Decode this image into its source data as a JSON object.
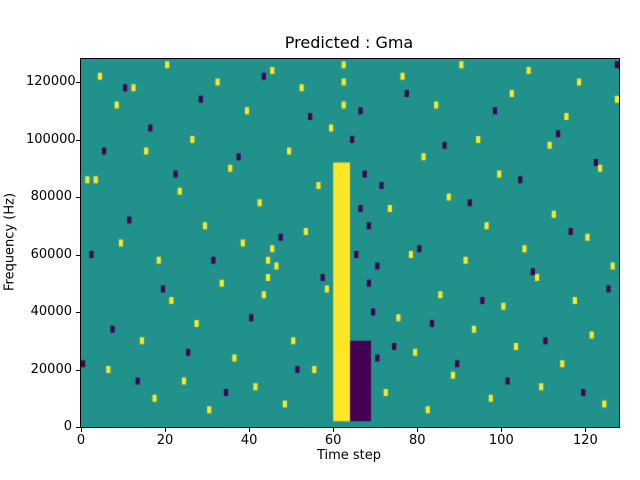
{
  "chart_data": {
    "type": "heatmap",
    "title": "Predicted : Gma",
    "xlabel": "Time step",
    "ylabel": "Frequency (Hz)",
    "x_max": 128,
    "y_max": 128000,
    "x_ticks": [
      0,
      20,
      40,
      60,
      80,
      100,
      120
    ],
    "y_ticks": [
      0,
      20000,
      40000,
      60000,
      80000,
      100000,
      120000
    ],
    "grid": false,
    "legend": "none",
    "colors": {
      "background": "#21918c",
      "yellow": "#fde725",
      "purple": "#440154"
    },
    "bands": [
      {
        "x0": 60,
        "x1": 63,
        "y0": 2000,
        "y1": 92000,
        "color": "yellow"
      },
      {
        "x0": 64,
        "x1": 68,
        "y0": 2000,
        "y1": 30000,
        "color": "purple"
      }
    ],
    "yellow_points": [
      [
        1,
        86000
      ],
      [
        3,
        86000
      ],
      [
        4,
        122000
      ],
      [
        6,
        20000
      ],
      [
        8,
        112000
      ],
      [
        9,
        64000
      ],
      [
        12,
        118000
      ],
      [
        14,
        30000
      ],
      [
        15,
        96000
      ],
      [
        17,
        10000
      ],
      [
        18,
        58000
      ],
      [
        20,
        126000
      ],
      [
        21,
        44000
      ],
      [
        23,
        82000
      ],
      [
        24,
        16000
      ],
      [
        26,
        100000
      ],
      [
        27,
        36000
      ],
      [
        29,
        70000
      ],
      [
        30,
        6000
      ],
      [
        32,
        120000
      ],
      [
        33,
        50000
      ],
      [
        35,
        90000
      ],
      [
        36,
        24000
      ],
      [
        38,
        64000
      ],
      [
        39,
        110000
      ],
      [
        41,
        14000
      ],
      [
        42,
        78000
      ],
      [
        43,
        46000
      ],
      [
        44,
        52000
      ],
      [
        44,
        58000
      ],
      [
        45,
        62000
      ],
      [
        45,
        124000
      ],
      [
        46,
        56000
      ],
      [
        48,
        8000
      ],
      [
        49,
        96000
      ],
      [
        50,
        30000
      ],
      [
        52,
        118000
      ],
      [
        53,
        68000
      ],
      [
        55,
        20000
      ],
      [
        56,
        84000
      ],
      [
        58,
        48000
      ],
      [
        59,
        104000
      ],
      [
        62,
        112000
      ],
      [
        62,
        120000
      ],
      [
        62,
        126000
      ],
      [
        72,
        12000
      ],
      [
        73,
        76000
      ],
      [
        75,
        38000
      ],
      [
        76,
        122000
      ],
      [
        78,
        60000
      ],
      [
        79,
        26000
      ],
      [
        81,
        94000
      ],
      [
        82,
        6000
      ],
      [
        84,
        112000
      ],
      [
        85,
        46000
      ],
      [
        87,
        80000
      ],
      [
        88,
        18000
      ],
      [
        90,
        126000
      ],
      [
        91,
        58000
      ],
      [
        93,
        34000
      ],
      [
        94,
        100000
      ],
      [
        96,
        70000
      ],
      [
        97,
        10000
      ],
      [
        99,
        88000
      ],
      [
        100,
        42000
      ],
      [
        102,
        116000
      ],
      [
        103,
        28000
      ],
      [
        105,
        62000
      ],
      [
        106,
        124000
      ],
      [
        108,
        52000
      ],
      [
        109,
        14000
      ],
      [
        111,
        98000
      ],
      [
        112,
        74000
      ],
      [
        114,
        22000
      ],
      [
        115,
        108000
      ],
      [
        117,
        44000
      ],
      [
        118,
        120000
      ],
      [
        120,
        66000
      ],
      [
        121,
        32000
      ],
      [
        123,
        90000
      ],
      [
        124,
        8000
      ],
      [
        126,
        56000
      ],
      [
        127,
        114000
      ]
    ],
    "purple_points": [
      [
        0,
        22000
      ],
      [
        2,
        60000
      ],
      [
        5,
        96000
      ],
      [
        7,
        34000
      ],
      [
        10,
        118000
      ],
      [
        11,
        72000
      ],
      [
        13,
        16000
      ],
      [
        16,
        104000
      ],
      [
        19,
        48000
      ],
      [
        22,
        88000
      ],
      [
        25,
        26000
      ],
      [
        28,
        114000
      ],
      [
        31,
        58000
      ],
      [
        34,
        12000
      ],
      [
        37,
        94000
      ],
      [
        40,
        38000
      ],
      [
        43,
        122000
      ],
      [
        47,
        66000
      ],
      [
        51,
        20000
      ],
      [
        54,
        108000
      ],
      [
        57,
        52000
      ],
      [
        64,
        100000
      ],
      [
        65,
        60000
      ],
      [
        66,
        76000
      ],
      [
        66,
        110000
      ],
      [
        67,
        88000
      ],
      [
        68,
        50000
      ],
      [
        68,
        70000
      ],
      [
        69,
        40000
      ],
      [
        70,
        24000
      ],
      [
        70,
        56000
      ],
      [
        71,
        84000
      ],
      [
        74,
        28000
      ],
      [
        77,
        116000
      ],
      [
        80,
        62000
      ],
      [
        83,
        36000
      ],
      [
        86,
        98000
      ],
      [
        89,
        22000
      ],
      [
        92,
        78000
      ],
      [
        95,
        44000
      ],
      [
        98,
        110000
      ],
      [
        101,
        16000
      ],
      [
        104,
        86000
      ],
      [
        107,
        54000
      ],
      [
        110,
        30000
      ],
      [
        113,
        102000
      ],
      [
        116,
        68000
      ],
      [
        119,
        12000
      ],
      [
        122,
        92000
      ],
      [
        125,
        48000
      ],
      [
        127,
        126000
      ]
    ]
  }
}
